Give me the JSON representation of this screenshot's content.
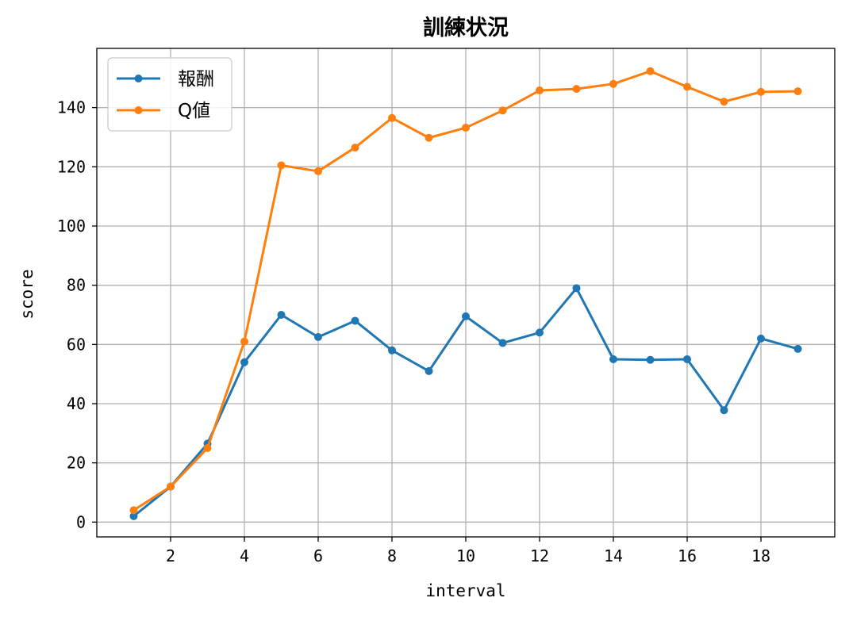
{
  "chart_data": {
    "type": "line",
    "title": "訓練状況",
    "xlabel": "interval",
    "ylabel": "score",
    "x": [
      1,
      2,
      3,
      4,
      5,
      6,
      7,
      8,
      9,
      10,
      11,
      12,
      13,
      14,
      15,
      16,
      17,
      18,
      19
    ],
    "xlim": [
      0,
      20
    ],
    "ylim": [
      -5,
      160
    ],
    "xticks": [
      2,
      4,
      6,
      8,
      10,
      12,
      14,
      16,
      18
    ],
    "yticks": [
      0,
      20,
      40,
      60,
      80,
      100,
      120,
      140
    ],
    "grid": true,
    "legend_position": "top-left",
    "series": [
      {
        "name": "報酬",
        "color": "#1f77b4",
        "values": [
          2,
          12,
          26.5,
          54,
          70,
          62.5,
          68,
          58,
          51,
          69.5,
          60.5,
          64,
          79,
          55,
          54.8,
          55,
          37.8,
          62,
          58.5
        ]
      },
      {
        "name": "Q値",
        "color": "#ff7f0e",
        "values": [
          4,
          12,
          25,
          61,
          120.5,
          118.5,
          126.5,
          136.5,
          129.8,
          133.2,
          139,
          145.8,
          146.3,
          148,
          152.3,
          147,
          142,
          145.3,
          145.5
        ]
      }
    ]
  }
}
